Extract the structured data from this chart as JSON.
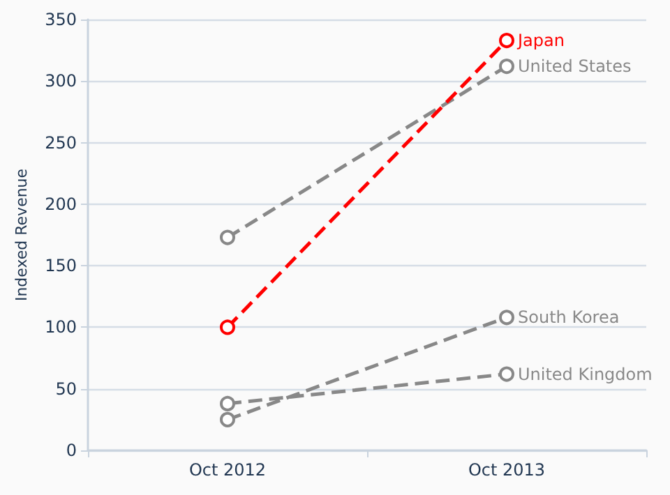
{
  "chart_data": {
    "type": "line",
    "ylabel": "Indexed Revenue",
    "categories": [
      "Oct 2012",
      "Oct 2013"
    ],
    "series": [
      {
        "name": "Japan",
        "color": "#ff0000",
        "values": [
          100,
          333
        ]
      },
      {
        "name": "United States",
        "color": "#888888",
        "values": [
          173,
          312
        ]
      },
      {
        "name": "South Korea",
        "color": "#888888",
        "values": [
          25,
          108
        ]
      },
      {
        "name": "United Kingdom",
        "color": "#888888",
        "values": [
          38,
          62
        ]
      }
    ],
    "ylim": [
      0,
      350
    ],
    "yticks": [
      0,
      50,
      100,
      150,
      200,
      250,
      300,
      350
    ],
    "grid": "y",
    "legend": false,
    "marker": "circle",
    "line_style": "dashed"
  }
}
